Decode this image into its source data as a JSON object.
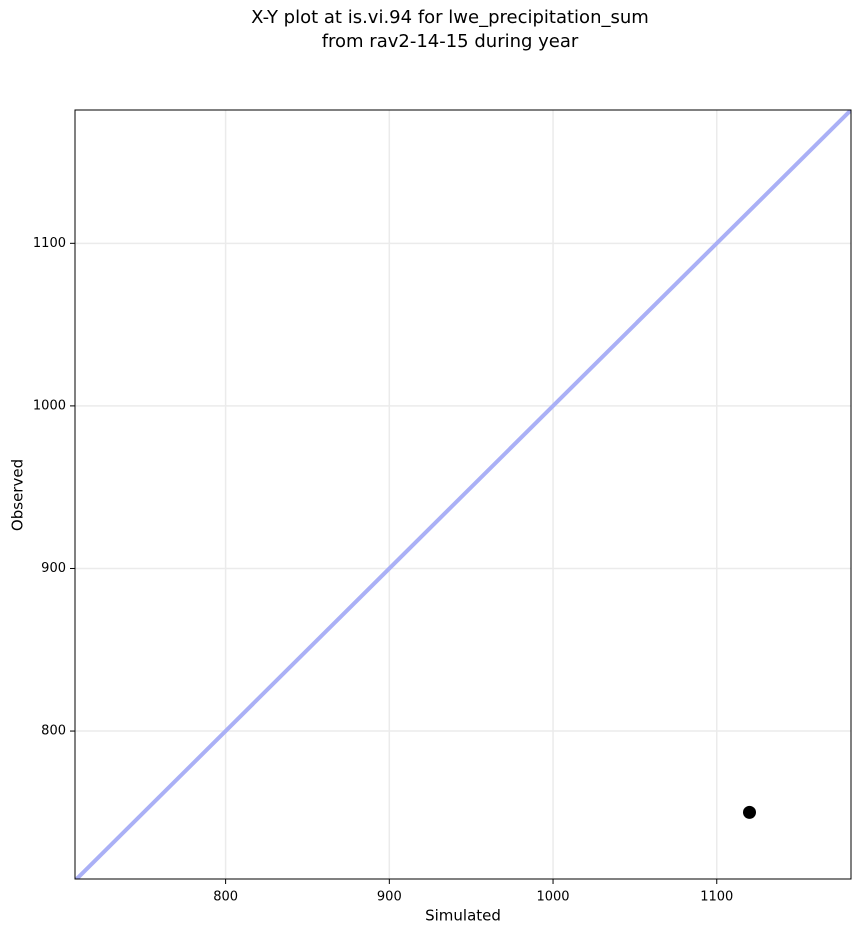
{
  "chart_data": {
    "type": "scatter",
    "title": [
      "X-Y plot at is.vi.94 for lwe_precipitation_sum",
      "from rav2-14-15 during year"
    ],
    "x_label": "Simulated",
    "y_label": "Observed",
    "x": [
      1120
    ],
    "values": [
      750
    ],
    "color": "#000000",
    "xlim": [
      708,
      1182
    ],
    "ylim": [
      709,
      1182
    ],
    "xticks": [
      800,
      900,
      1000,
      1100
    ],
    "yticks": [
      800,
      900,
      1000,
      1100
    ],
    "grid": true
  }
}
